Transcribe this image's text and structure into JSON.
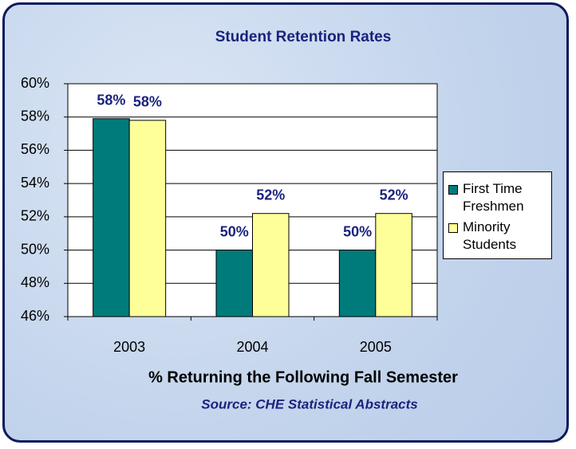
{
  "chart_data": {
    "type": "bar",
    "title": "Student Retention Rates",
    "x_label": "% Returning the Following Fall Semester",
    "subtitle": "Source: CHE Statistical Abstracts",
    "categories": [
      "2003",
      "2004",
      "2005"
    ],
    "series": [
      {
        "name": "First Time Freshmen",
        "color": "#007b7b",
        "values": [
          57.9,
          50,
          50
        ],
        "value_labels": [
          "58%",
          "50%",
          "50%"
        ]
      },
      {
        "name": "Minority Students",
        "color": "#ffff99",
        "values": [
          57.8,
          52.2,
          52.2
        ],
        "value_labels": [
          "58%",
          "52%",
          "52%"
        ]
      }
    ],
    "ylim": [
      46,
      60
    ],
    "yticks": [
      {
        "value": 46,
        "label": "46%"
      },
      {
        "value": 48,
        "label": "48%"
      },
      {
        "value": 50,
        "label": "50%"
      },
      {
        "value": 52,
        "label": "52%"
      },
      {
        "value": 54,
        "label": "54%"
      },
      {
        "value": 56,
        "label": "56%"
      },
      {
        "value": 58,
        "label": "58%"
      },
      {
        "value": 60,
        "label": "60%"
      }
    ],
    "grid": true,
    "legend": "right"
  }
}
